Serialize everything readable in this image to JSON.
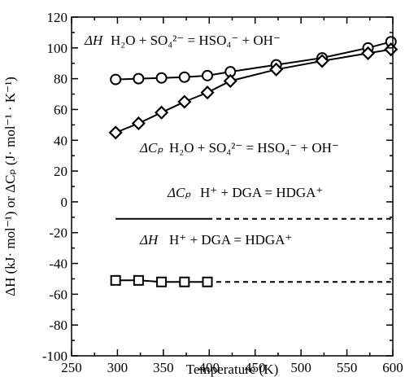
{
  "chart_data": {
    "type": "line",
    "xlabel": "Temperature (K)",
    "ylabel": "ΔH (kJ· mol⁻¹) or ΔCₚ (J· mol⁻¹ · K⁻¹)",
    "xlim": [
      250,
      600
    ],
    "ylim": [
      -100,
      120
    ],
    "xticks": [
      250,
      300,
      350,
      400,
      450,
      500,
      550,
      600
    ],
    "yticks": [
      120,
      100,
      80,
      60,
      40,
      20,
      0,
      -20,
      -40,
      -60,
      -80,
      -100
    ],
    "grid": false,
    "series": [
      {
        "marker": "circle",
        "line": "solid",
        "x": [
          298,
          323,
          348,
          373,
          398,
          423,
          473,
          523,
          573,
          598
        ],
        "y": [
          79.5,
          80,
          80.5,
          81,
          82,
          84.5,
          89,
          93.5,
          100,
          104
        ]
      },
      {
        "marker": "diamond",
        "line": "solid",
        "x": [
          298,
          323,
          348,
          373,
          398,
          423,
          473,
          523,
          573,
          598
        ],
        "y": [
          45,
          51,
          58,
          65,
          71,
          78.5,
          86,
          91.5,
          96.5,
          99
        ]
      },
      {
        "marker": "none",
        "line": "solid-then-dashed",
        "x": [
          298,
          398,
          598
        ],
        "y": [
          -11,
          -11,
          -11
        ]
      },
      {
        "marker": "square",
        "line": "solid-then-dashed",
        "x": [
          298,
          323,
          348,
          373,
          398,
          598
        ],
        "y": [
          -51,
          -51,
          -52,
          -52,
          -52,
          -52
        ]
      }
    ],
    "annotations": [
      {
        "text_sym": "ΔH",
        "text_eq": "H₂O + SO₄²⁻ = HSO₄⁻ + OH⁻"
      },
      {
        "text_sym": "ΔCₚ",
        "text_eq": "H₂O + SO₄²⁻ = HSO₄⁻ + OH⁻"
      },
      {
        "text_sym": "ΔCₚ",
        "text_eq": "H⁺ + DGA = HDGA⁺"
      },
      {
        "text_sym": "ΔH",
        "text_eq": "H⁺ + DGA = HDGA⁺"
      }
    ]
  }
}
